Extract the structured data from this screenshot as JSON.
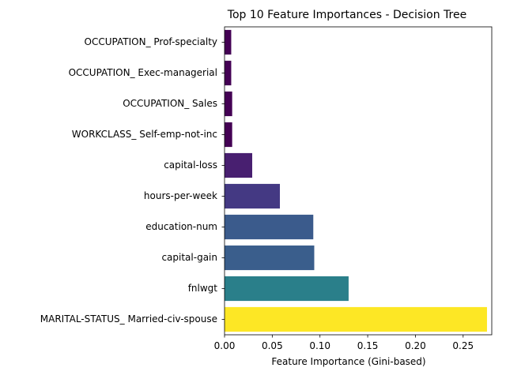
{
  "chart_data": {
    "type": "bar",
    "orientation": "horizontal",
    "title": "Top 10 Feature Importances - Decision Tree",
    "xlabel": "Feature Importance (Gini-based)",
    "ylabel": "",
    "xlim": [
      0,
      0.28
    ],
    "x_ticks": [
      0.0,
      0.05,
      0.1,
      0.15,
      0.2,
      0.25
    ],
    "x_tick_labels": [
      "0.00",
      "0.05",
      "0.10",
      "0.15",
      "0.20",
      "0.25"
    ],
    "grid": false,
    "legend": "none",
    "categories": [
      "OCCUPATION_ Prof-specialty",
      "OCCUPATION_ Exec-managerial",
      "OCCUPATION_ Sales",
      "WORKCLASS_ Self-emp-not-inc",
      "capital-loss",
      "hours-per-week",
      "education-num",
      "capital-gain",
      "fnlwgt",
      "MARITAL-STATUS_ Married-civ-spouse"
    ],
    "values": [
      0.007,
      0.007,
      0.008,
      0.008,
      0.029,
      0.058,
      0.093,
      0.094,
      0.13,
      0.275
    ],
    "colors": [
      "#440154",
      "#440154",
      "#440154",
      "#440154",
      "#481f70",
      "#443983",
      "#3b5b8c",
      "#3a5e8c",
      "#2a7f8a",
      "#fde725"
    ]
  }
}
